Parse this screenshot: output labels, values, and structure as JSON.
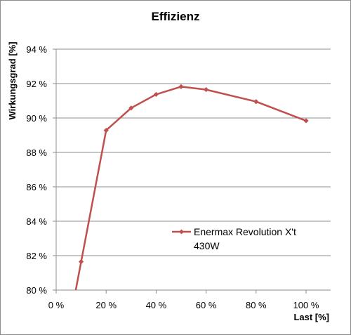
{
  "chart_data": {
    "type": "line",
    "title": "Effizienz",
    "xlabel": "Last [%]",
    "ylabel": "Wirkungsgrad [%]",
    "xlim": [
      0,
      100
    ],
    "ylim": [
      80,
      94
    ],
    "x_ticks": [
      0,
      20,
      40,
      60,
      80,
      100
    ],
    "y_ticks": [
      80,
      82,
      84,
      86,
      88,
      90,
      92,
      94
    ],
    "x_tick_labels": [
      "0 %",
      "20 %",
      "40 %",
      "60 %",
      "80 %",
      "100 %"
    ],
    "y_tick_labels": [
      "80 %",
      "82 %",
      "84 %",
      "86 %",
      "88 %",
      "90 %",
      "92 %",
      "94 %"
    ],
    "grid": "horizontal",
    "legend_position": "right-bottom",
    "series": [
      {
        "name_lines": [
          "Enermax Revolution X't",
          "430W"
        ],
        "color": "#c0504d",
        "x": [
          10,
          20,
          30,
          40,
          50,
          60,
          80,
          100
        ],
        "y": [
          81.65,
          89.28,
          90.58,
          91.37,
          91.82,
          91.65,
          90.95,
          89.84
        ]
      }
    ]
  }
}
